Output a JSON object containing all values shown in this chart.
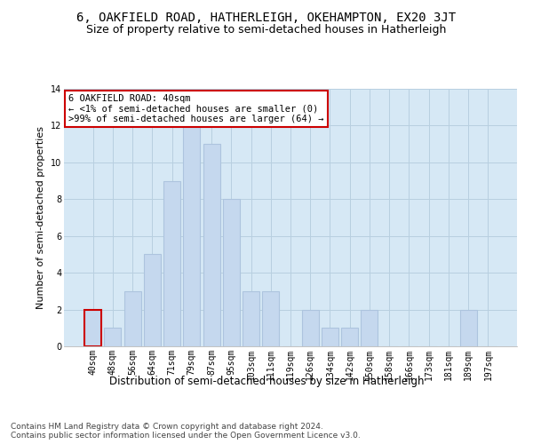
{
  "title": "6, OAKFIELD ROAD, HATHERLEIGH, OKEHAMPTON, EX20 3JT",
  "subtitle": "Size of property relative to semi-detached houses in Hatherleigh",
  "xlabel": "Distribution of semi-detached houses by size in Hatherleigh",
  "ylabel": "Number of semi-detached properties",
  "categories": [
    "40sqm",
    "48sqm",
    "56sqm",
    "64sqm",
    "71sqm",
    "79sqm",
    "87sqm",
    "95sqm",
    "103sqm",
    "111sqm",
    "119sqm",
    "126sqm",
    "134sqm",
    "142sqm",
    "150sqm",
    "158sqm",
    "166sqm",
    "173sqm",
    "181sqm",
    "189sqm",
    "197sqm"
  ],
  "values": [
    2,
    1,
    3,
    5,
    9,
    12,
    11,
    8,
    3,
    3,
    0,
    2,
    1,
    1,
    2,
    0,
    0,
    0,
    0,
    2,
    0
  ],
  "bar_color": "#c5d8ee",
  "bar_edge_color": "#adc4de",
  "highlight_bar_index": 0,
  "highlight_bar_color": "#c5d8ee",
  "highlight_bar_edge_color": "#cc0000",
  "annotation_box_text": "6 OAKFIELD ROAD: 40sqm\n← <1% of semi-detached houses are smaller (0)\n>99% of semi-detached houses are larger (64) →",
  "annotation_box_color": "#ffffff",
  "annotation_box_edge_color": "#cc0000",
  "ylim": [
    0,
    14
  ],
  "yticks": [
    0,
    2,
    4,
    6,
    8,
    10,
    12,
    14
  ],
  "grid_color": "#b8cfe0",
  "background_color": "#d6e8f5",
  "footer_line1": "Contains HM Land Registry data © Crown copyright and database right 2024.",
  "footer_line2": "Contains public sector information licensed under the Open Government Licence v3.0.",
  "title_fontsize": 10,
  "subtitle_fontsize": 9,
  "xlabel_fontsize": 8.5,
  "ylabel_fontsize": 8,
  "tick_fontsize": 7,
  "annotation_fontsize": 7.5,
  "footer_fontsize": 6.5
}
